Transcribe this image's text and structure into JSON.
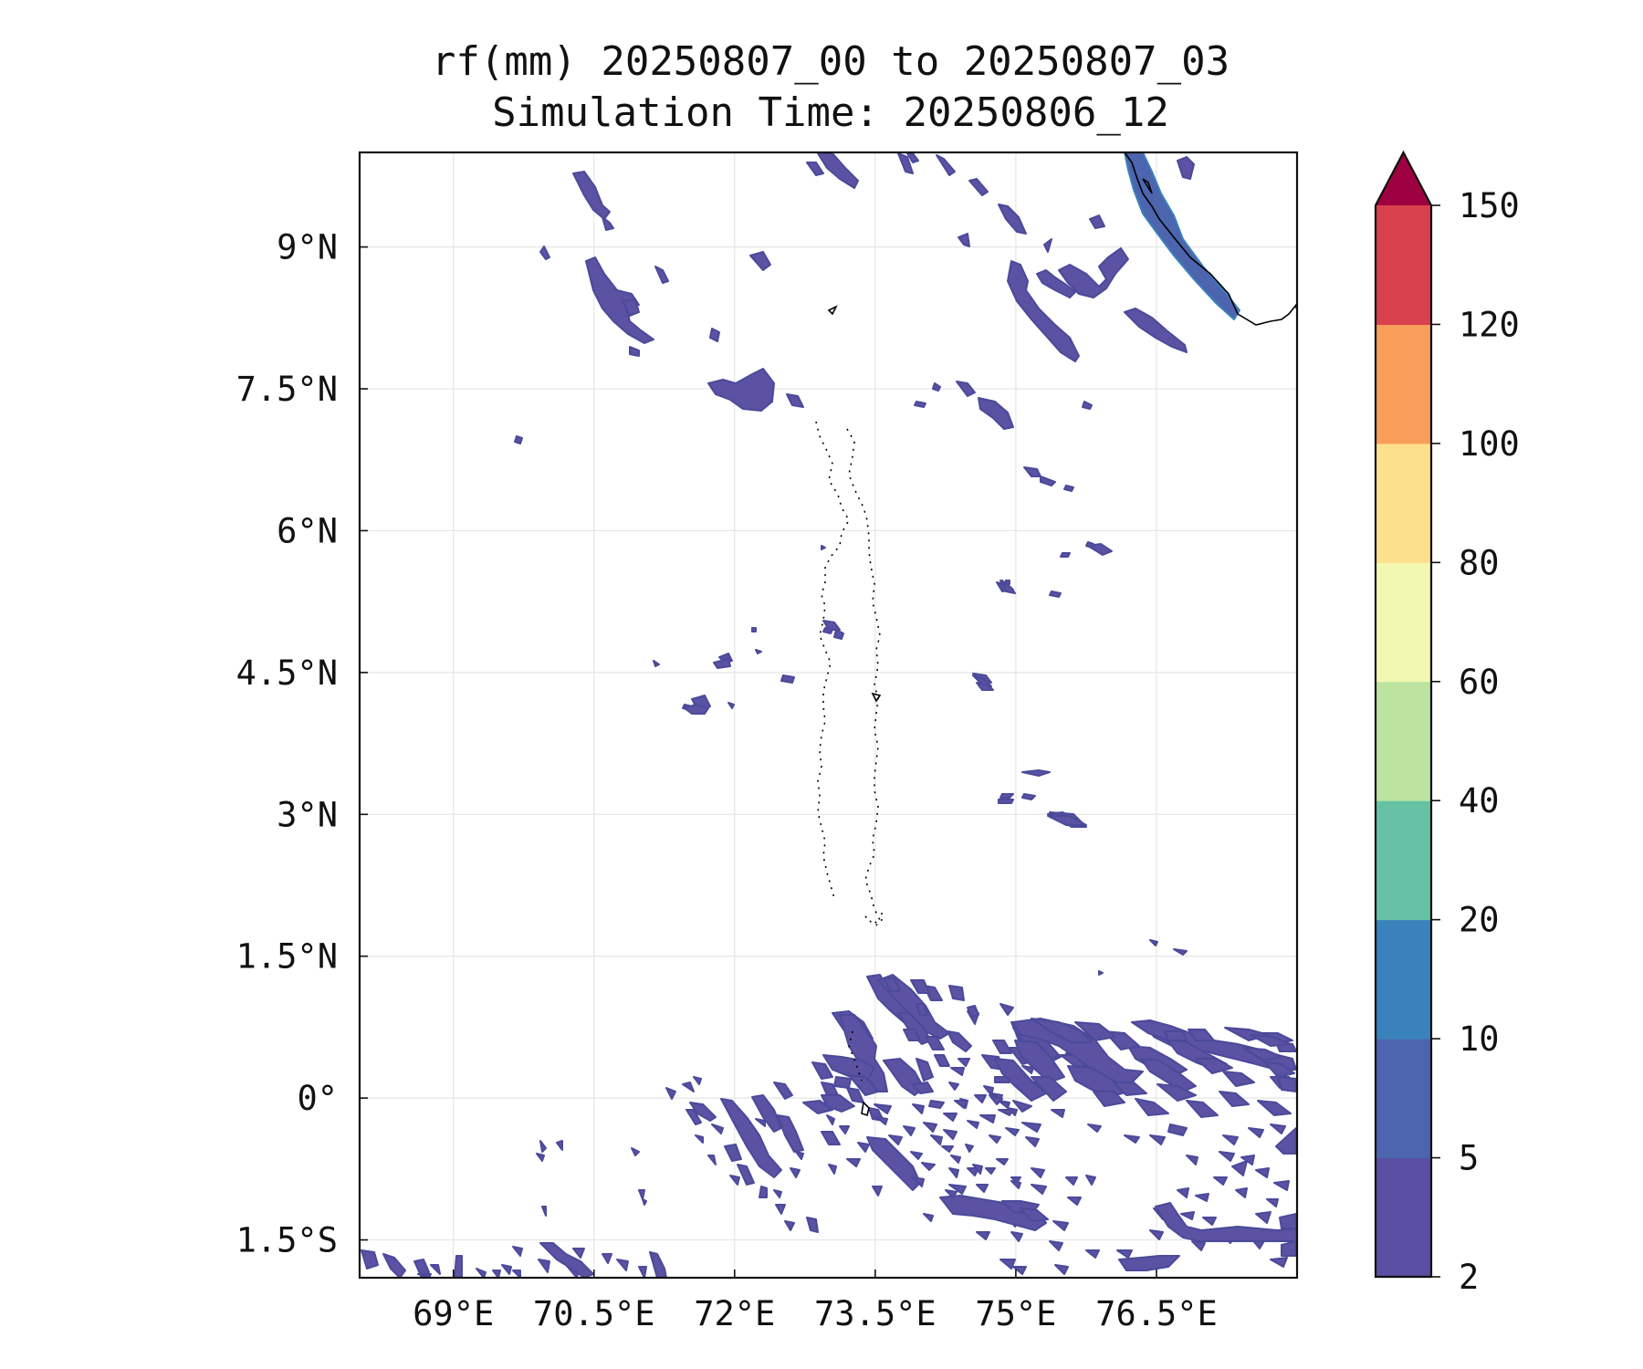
{
  "title": {
    "line1": "rf(mm) 20250807_00 to 20250807_03",
    "line2": "Simulation Time: 20250806_12"
  },
  "map": {
    "lon_range": [
      68.0,
      78.0
    ],
    "lat_range": [
      -1.9,
      10.0
    ],
    "x_ticks": [
      {
        "value": 69.0,
        "label": "69°E"
      },
      {
        "value": 70.5,
        "label": "70.5°E"
      },
      {
        "value": 72.0,
        "label": "72°E"
      },
      {
        "value": 73.5,
        "label": "73.5°E"
      },
      {
        "value": 75.0,
        "label": "75°E"
      },
      {
        "value": 76.5,
        "label": "76.5°E"
      }
    ],
    "y_ticks": [
      {
        "value": 9.0,
        "label": "9°N"
      },
      {
        "value": 7.5,
        "label": "7.5°N"
      },
      {
        "value": 6.0,
        "label": "6°N"
      },
      {
        "value": 4.5,
        "label": "4.5°N"
      },
      {
        "value": 3.0,
        "label": "3°N"
      },
      {
        "value": 1.5,
        "label": "1.5°N"
      },
      {
        "value": 0.0,
        "label": "0°"
      },
      {
        "value": -1.5,
        "label": "1.5°S"
      }
    ],
    "grid": true
  },
  "colorbar": {
    "levels": [
      "2",
      "5",
      "10",
      "20",
      "40",
      "60",
      "80",
      "100",
      "120",
      "150"
    ],
    "colors": [
      "#5a4fa2",
      "#4d64ae",
      "#3a82bb",
      "#66c2a5",
      "#bce4a0",
      "#f2f7b2",
      "#fce08b",
      "#f99d5a",
      "#d8404e"
    ],
    "extend_color": "#9e0142"
  }
}
